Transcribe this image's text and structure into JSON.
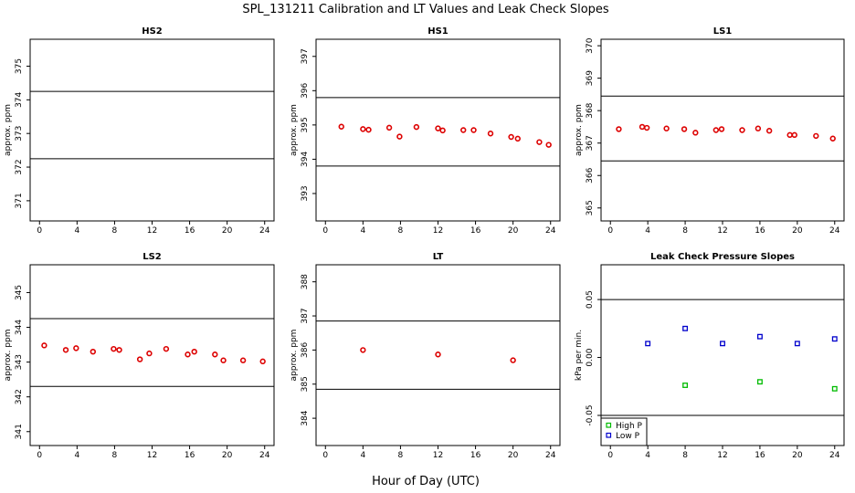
{
  "figure": {
    "title": "SPL_131211  Calibration and LT Values and Leak Check Slopes",
    "xlabel": "Hour of Day (UTC)"
  },
  "chart_data": [
    {
      "id": "hs2",
      "type": "scatter",
      "title": "HS2",
      "ylabel": "approx. ppm",
      "xlim": [
        -1,
        25
      ],
      "ylim": [
        370.4,
        375.8
      ],
      "xticks": [
        0,
        4,
        8,
        12,
        16,
        20,
        24
      ],
      "yticks": [
        371,
        372,
        373,
        374,
        375
      ],
      "hlines": [
        374.25,
        372.25
      ],
      "series": [
        {
          "color": "#dd0000",
          "marker": "circle",
          "x": [],
          "y": []
        }
      ]
    },
    {
      "id": "hs1",
      "type": "scatter",
      "title": "HS1",
      "ylabel": "approx. ppm",
      "xlim": [
        -1,
        25
      ],
      "ylim": [
        392.2,
        397.5
      ],
      "xticks": [
        0,
        4,
        8,
        12,
        16,
        20,
        24
      ],
      "yticks": [
        393,
        394,
        395,
        396,
        397
      ],
      "hlines": [
        395.8,
        393.8
      ],
      "series": [
        {
          "color": "#dd0000",
          "marker": "circle",
          "x": [
            1.7,
            4.0,
            4.6,
            6.8,
            7.9,
            9.7,
            12.0,
            12.5,
            14.7,
            15.8,
            17.6,
            19.8,
            20.5,
            22.8,
            23.8
          ],
          "y": [
            394.95,
            394.88,
            394.86,
            394.92,
            394.66,
            394.94,
            394.9,
            394.84,
            394.85,
            394.85,
            394.75,
            394.65,
            394.6,
            394.5,
            394.42
          ]
        }
      ]
    },
    {
      "id": "ls1",
      "type": "scatter",
      "title": "LS1",
      "ylabel": "approx. ppm",
      "xlim": [
        -1,
        25
      ],
      "ylim": [
        364.6,
        370.2
      ],
      "xticks": [
        0,
        4,
        8,
        12,
        16,
        20,
        24
      ],
      "yticks": [
        365,
        366,
        367,
        368,
        369,
        370
      ],
      "hlines": [
        368.45,
        366.45
      ],
      "series": [
        {
          "color": "#dd0000",
          "marker": "circle",
          "x": [
            0.9,
            3.4,
            3.9,
            6.0,
            7.9,
            9.1,
            11.3,
            11.9,
            14.1,
            15.8,
            17.0,
            19.2,
            19.7,
            22.0,
            23.8
          ],
          "y": [
            367.43,
            367.5,
            367.47,
            367.45,
            367.43,
            367.32,
            367.4,
            367.43,
            367.4,
            367.45,
            367.38,
            367.25,
            367.25,
            367.22,
            367.14
          ]
        }
      ]
    },
    {
      "id": "ls2",
      "type": "scatter",
      "title": "LS2",
      "ylabel": "approx. ppm",
      "xlim": [
        -1,
        25
      ],
      "ylim": [
        340.6,
        345.8
      ],
      "xticks": [
        0,
        4,
        8,
        12,
        16,
        20,
        24
      ],
      "yticks": [
        341,
        342,
        343,
        344,
        345
      ],
      "hlines": [
        344.25,
        342.3
      ],
      "series": [
        {
          "color": "#dd0000",
          "marker": "circle",
          "x": [
            0.5,
            2.8,
            3.9,
            5.7,
            7.9,
            8.5,
            10.7,
            11.7,
            13.5,
            15.8,
            16.5,
            18.7,
            19.6,
            21.7,
            23.8
          ],
          "y": [
            343.48,
            343.35,
            343.4,
            343.3,
            343.38,
            343.35,
            343.08,
            343.25,
            343.38,
            343.22,
            343.3,
            343.22,
            343.05,
            343.05,
            343.02
          ]
        }
      ]
    },
    {
      "id": "lt",
      "type": "scatter",
      "title": "LT",
      "ylabel": "approx. ppm",
      "xlim": [
        -1,
        25
      ],
      "ylim": [
        383.2,
        388.5
      ],
      "xticks": [
        0,
        4,
        8,
        12,
        16,
        20,
        24
      ],
      "yticks": [
        384,
        385,
        386,
        387,
        388
      ],
      "hlines": [
        386.85,
        384.85
      ],
      "series": [
        {
          "color": "#dd0000",
          "marker": "circle",
          "x": [
            4.0,
            12.0,
            20.0
          ],
          "y": [
            386.0,
            385.87,
            385.7
          ]
        }
      ]
    },
    {
      "id": "leak",
      "type": "scatter",
      "title": "Leak Check Pressure Slopes",
      "ylabel": "kPa per min.",
      "xlim": [
        -1,
        25
      ],
      "ylim": [
        -0.076,
        0.08
      ],
      "xticks": [
        0,
        4,
        8,
        12,
        16,
        20,
        24
      ],
      "yticks": [
        -0.05,
        0.0,
        0.05
      ],
      "ytick_labels": [
        "-0.05",
        "0.00",
        "0.05"
      ],
      "hlines": [
        0.05,
        -0.05
      ],
      "legend": {
        "position": "bottom-left"
      },
      "series": [
        {
          "name": "High P",
          "color": "#00bb00",
          "marker": "square",
          "x": [
            8.0,
            16.0,
            24.0
          ],
          "y": [
            -0.024,
            -0.021,
            -0.027
          ]
        },
        {
          "name": "Low P",
          "color": "#0000cc",
          "marker": "square",
          "x": [
            4.0,
            8.0,
            12.0,
            16.0,
            20.0,
            24.0
          ],
          "y": [
            0.012,
            0.025,
            0.012,
            0.018,
            0.012,
            0.016
          ]
        }
      ]
    }
  ]
}
